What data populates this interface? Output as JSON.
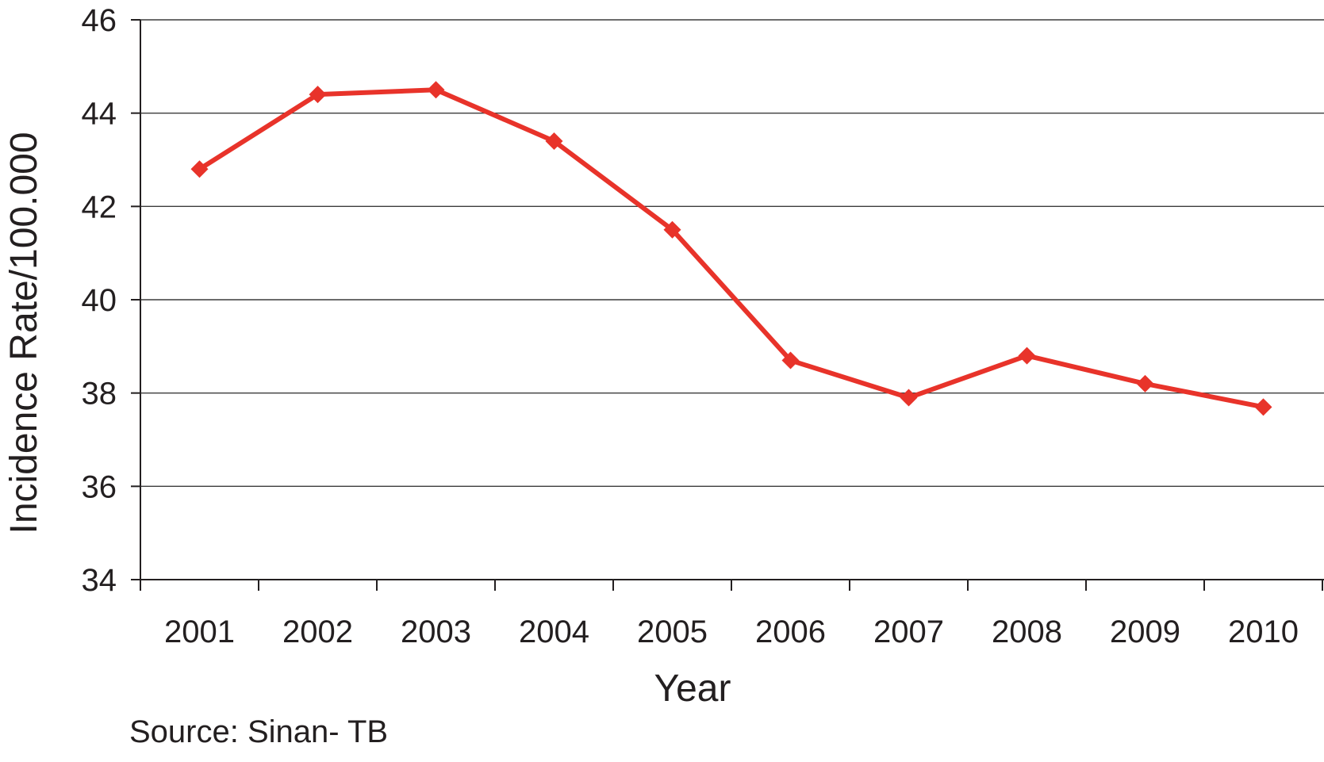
{
  "chart_data": {
    "type": "line",
    "title": "",
    "xlabel": "Year",
    "ylabel": "Incidence Rate/100.000",
    "categories": [
      "2001",
      "2002",
      "2003",
      "2004",
      "2005",
      "2006",
      "2007",
      "2008",
      "2009",
      "2010"
    ],
    "series": [
      {
        "values": [
          42.8,
          44.4,
          44.5,
          43.4,
          41.5,
          38.7,
          37.9,
          38.8,
          38.2,
          37.7
        ],
        "color": "#e8332a",
        "marker": "diamond"
      }
    ],
    "ylim": [
      34,
      46
    ],
    "yticks": [
      34,
      36,
      38,
      40,
      42,
      44,
      46
    ],
    "grid": true,
    "legend": "none"
  },
  "source_note": "Source: Sinan- TB"
}
